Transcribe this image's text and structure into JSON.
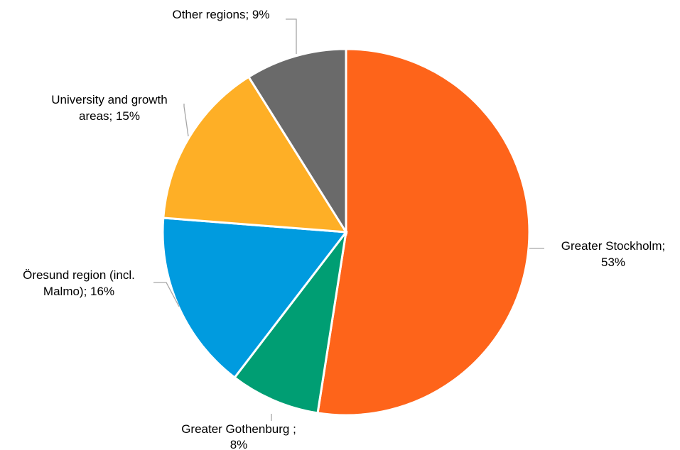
{
  "chart_data": {
    "type": "pie",
    "title": "",
    "slices": [
      {
        "label_lines": [
          "Greater Stockholm;",
          "53%"
        ],
        "value": 53,
        "color": "#fe641a"
      },
      {
        "label_lines": [
          "Greater Gothenburg ;",
          "8%"
        ],
        "value": 8,
        "color": "#009e73"
      },
      {
        "label_lines": [
          "Öresund region (incl.",
          "Malmo); 16%"
        ],
        "value": 16,
        "color": "#009bdf"
      },
      {
        "label_lines": [
          "University and growth",
          "areas; 15%"
        ],
        "value": 15,
        "color": "#feaf26"
      },
      {
        "label_lines": [
          "Other regions; 9%"
        ],
        "value": 9,
        "color": "#6a6a6a"
      }
    ],
    "legend": "none"
  }
}
